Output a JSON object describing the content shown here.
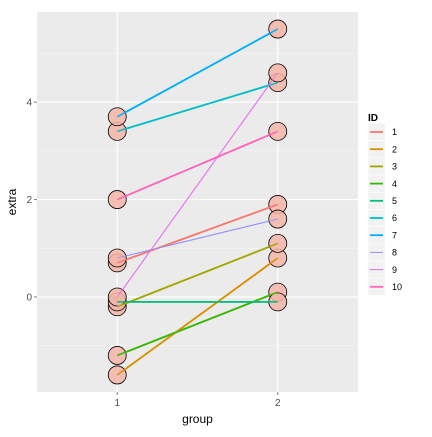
{
  "chart_data": {
    "type": "line",
    "title": "",
    "xlabel": "group",
    "ylabel": "extra",
    "x_categories": [
      "1",
      "2"
    ],
    "xlim": [
      0.5,
      2.5
    ],
    "ylim": [
      -1.95,
      5.85
    ],
    "y_ticks": [
      0,
      2,
      4
    ],
    "grid": true,
    "background_color": "#ebebeb",
    "grid_major_color": "#ffffff",
    "point_fill": "#f4b5a8",
    "point_stroke": "#000000",
    "legend_position": "right",
    "legend_title": "ID",
    "series": [
      {
        "name": "1",
        "color": "#F8766D",
        "linewidth": "thick",
        "values": [
          0.7,
          1.9
        ]
      },
      {
        "name": "2",
        "color": "#D89000",
        "linewidth": "thick",
        "values": [
          -1.6,
          0.8
        ]
      },
      {
        "name": "3",
        "color": "#A3A500",
        "linewidth": "thick",
        "values": [
          -0.2,
          1.1
        ]
      },
      {
        "name": "4",
        "color": "#39B600",
        "linewidth": "thick",
        "values": [
          -1.2,
          0.1
        ]
      },
      {
        "name": "5",
        "color": "#00BF7D",
        "linewidth": "thick",
        "values": [
          -0.1,
          -0.1
        ]
      },
      {
        "name": "6",
        "color": "#00BFC4",
        "linewidth": "thick",
        "values": [
          3.4,
          4.4
        ]
      },
      {
        "name": "7",
        "color": "#00B0F6",
        "linewidth": "thick",
        "values": [
          3.7,
          5.5
        ]
      },
      {
        "name": "8",
        "color": "#9590FF",
        "linewidth": "thin",
        "values": [
          0.8,
          1.6
        ]
      },
      {
        "name": "9",
        "color": "#E76BF3",
        "linewidth": "thin",
        "values": [
          0.0,
          4.6
        ]
      },
      {
        "name": "10",
        "color": "#FF62BC",
        "linewidth": "thick",
        "values": [
          2.0,
          3.4
        ]
      }
    ]
  }
}
